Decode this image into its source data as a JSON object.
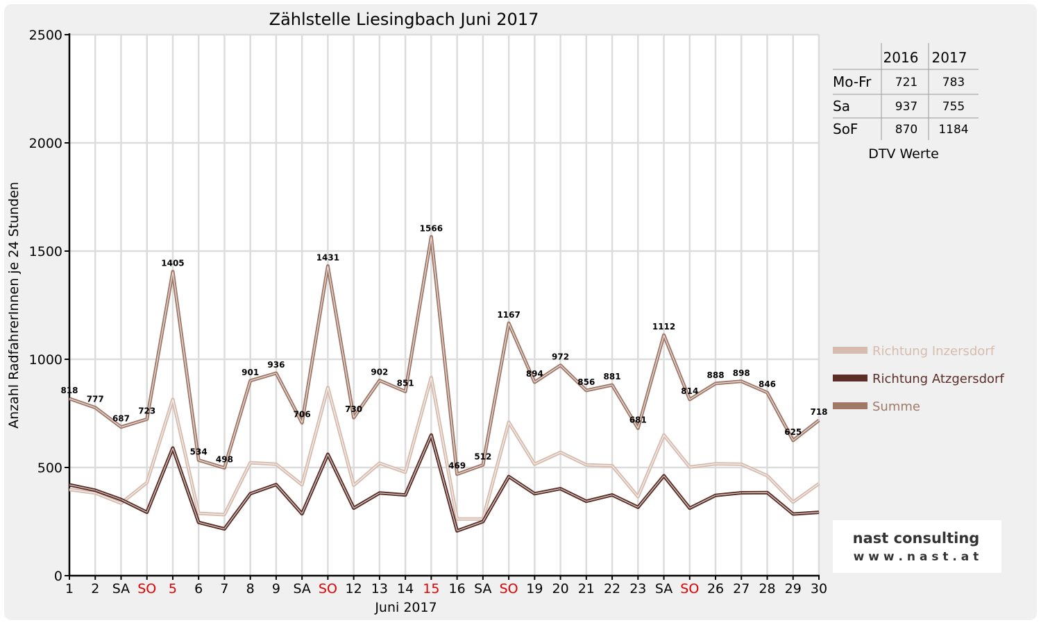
{
  "chart_data": {
    "type": "line",
    "title": "Zählstelle Liesingbach Juni 2017",
    "xlabel": "Juni 2017",
    "ylabel": "Anzahl RadfahrerInnen je 24 Stunden",
    "ylim": [
      0,
      2500
    ],
    "yticks": [
      "0",
      "500",
      "1000",
      "1500",
      "2000",
      "2500"
    ],
    "grid": true,
    "legend_position": "right",
    "categories": [
      "1",
      "2",
      "SA",
      "SO",
      "5",
      "6",
      "7",
      "8",
      "9",
      "SA",
      "SO",
      "12",
      "13",
      "14",
      "15",
      "16",
      "SA",
      "SO",
      "19",
      "20",
      "21",
      "22",
      "23",
      "SA",
      "SO",
      "26",
      "27",
      "28",
      "29",
      "30"
    ],
    "highlight_categories": [
      3,
      4,
      10,
      14,
      17,
      24
    ],
    "series": [
      {
        "name": "Richtung Inzersdorf",
        "color": "#d6bcaf",
        "values": [
          398,
          382,
          335,
          430,
          815,
          288,
          282,
          522,
          515,
          420,
          870,
          418,
          520,
          478,
          916,
          262,
          262,
          709,
          515,
          570,
          512,
          508,
          365,
          650,
          502,
          517,
          515,
          462,
          340,
          425
        ]
      },
      {
        "name": "Richtung Atzgersdorf",
        "color": "#5a2e26",
        "values": [
          420,
          395,
          352,
          293,
          590,
          246,
          216,
          379,
          421,
          286,
          561,
          312,
          382,
          373,
          650,
          207,
          250,
          458,
          379,
          402,
          344,
          373,
          316,
          462,
          312,
          371,
          383,
          384,
          285,
          293
        ]
      },
      {
        "name": "Summe",
        "color": "#a07868",
        "values": [
          818,
          777,
          687,
          723,
          1405,
          534,
          498,
          901,
          936,
          706,
          1431,
          730,
          902,
          851,
          1566,
          469,
          512,
          1167,
          894,
          972,
          856,
          881,
          681,
          1112,
          814,
          888,
          898,
          846,
          625,
          718
        ],
        "labels": [
          "818",
          "777",
          "687",
          "723",
          "1405",
          "534",
          "498",
          "901",
          "936",
          "706",
          "1431",
          "730",
          "902",
          "851",
          "1566",
          "469",
          "512",
          "1167",
          "894",
          "972",
          "856",
          "881",
          "681",
          "1112",
          "814",
          "888",
          "898",
          "846",
          "625",
          "718"
        ]
      }
    ],
    "dtv_table": {
      "headers": [
        "",
        "2016",
        "2017"
      ],
      "rows": [
        [
          "Mo-Fr",
          "721",
          "783"
        ],
        [
          "Sa",
          "937",
          "755"
        ],
        [
          "SoF",
          "870",
          "1184"
        ]
      ],
      "caption": "DTV Werte"
    }
  },
  "branding": {
    "company": "nast consulting",
    "url": "w w w . n a s t . a t"
  },
  "colors": {
    "highlight_text": "#e00000",
    "panel_background": "#f0f0f0",
    "grid": "#dcdcdc",
    "axis": "#000000"
  }
}
